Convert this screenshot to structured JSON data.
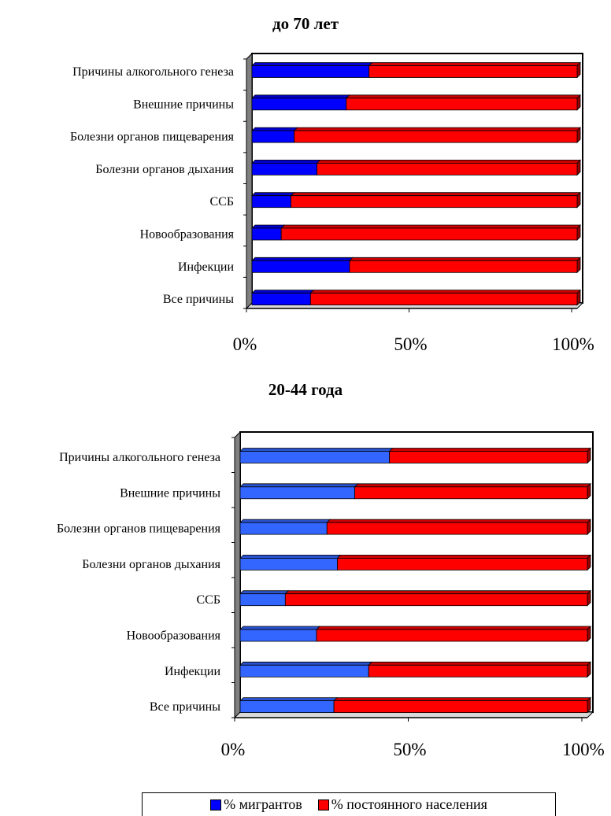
{
  "chart_data": [
    {
      "type": "bar",
      "stacked": "percent",
      "orientation": "horizontal",
      "title": "до 70 лет",
      "categories": [
        "Причины алкогольного генеза",
        "Внешние причины",
        "Болезни органов пищеварения",
        "Болезни органов дыхания",
        "ССБ",
        "Новообразования",
        "Инфекции",
        "Все причины"
      ],
      "series": [
        {
          "name": "% мигрантов",
          "values": [
            36,
            29,
            13,
            20,
            12,
            9,
            30,
            18
          ],
          "color": "#0000ff"
        },
        {
          "name": "% постоянного населения",
          "values": [
            64,
            71,
            87,
            80,
            88,
            91,
            70,
            82
          ],
          "color": "#ff0000"
        }
      ],
      "xticks": [
        "0%",
        "50%",
        "100%"
      ],
      "xlim": [
        0,
        100
      ]
    },
    {
      "type": "bar",
      "stacked": "percent",
      "orientation": "horizontal",
      "title": "20-44 года",
      "categories": [
        "Причины алкогольного генеза",
        "Внешние причины",
        "Болезни органов пищеварения",
        "Болезни органов дыхания",
        "ССБ",
        "Новообразования",
        "Инфекции",
        "Все причины"
      ],
      "series": [
        {
          "name": "% мигрантов",
          "values": [
            43,
            33,
            25,
            28,
            13,
            22,
            37,
            27
          ],
          "color": "#3366ff"
        },
        {
          "name": "% постоянного населения",
          "values": [
            57,
            67,
            75,
            72,
            87,
            78,
            63,
            73
          ],
          "color": "#ff0000"
        }
      ],
      "xticks": [
        "0%",
        "50%",
        "100%"
      ],
      "xlim": [
        0,
        100
      ]
    }
  ],
  "legend": {
    "items": [
      {
        "label": "% мигрантов",
        "color": "#0000ff"
      },
      {
        "label": "% постоянного населения",
        "color": "#ff0000"
      }
    ]
  }
}
